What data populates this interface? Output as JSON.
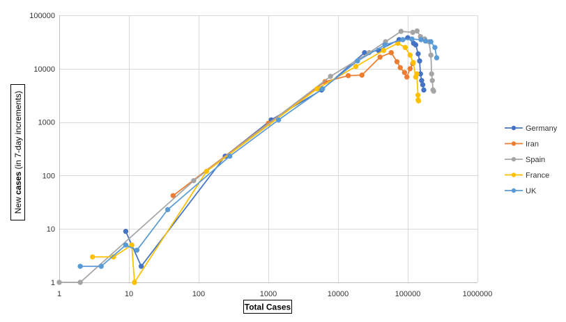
{
  "chart_data": {
    "type": "line",
    "xlabel": "Total Cases",
    "ylabel_parts": [
      "New ",
      "cases",
      " (in 7-day increments)"
    ],
    "xscale": "log",
    "yscale": "log",
    "xlim": [
      1,
      1000000
    ],
    "ylim": [
      1,
      100000
    ],
    "x_ticks": [
      1,
      10,
      100,
      1000,
      10000,
      100000,
      1000000
    ],
    "x_tick_labels": [
      "1",
      "10",
      "100",
      "1000",
      "10000",
      "100000",
      "1000000"
    ],
    "y_ticks": [
      1,
      10,
      100,
      1000,
      10000,
      100000
    ],
    "y_tick_labels": [
      "1",
      "10",
      "100",
      "1000",
      "10000",
      "100000"
    ],
    "grid": true,
    "legend_position": "right",
    "series": [
      {
        "name": "Germany",
        "color": "#4472c4",
        "x": [
          9,
          15,
          240,
          1100,
          5800,
          24000,
          38000,
          75000,
          100000,
          121000,
          130000,
          141000,
          148000,
          152000,
          158000,
          164000,
          170000
        ],
        "y": [
          9,
          2,
          230,
          1100,
          4000,
          20000,
          22000,
          35000,
          38000,
          30000,
          28000,
          19000,
          14000,
          8000,
          6000,
          5000,
          4000
        ]
      },
      {
        "name": "Iran",
        "color": "#ed7d31",
        "x": [
          43,
          1000,
          6500,
          14000,
          22000,
          40000,
          58000,
          70000,
          78000,
          90000,
          97000,
          108000,
          118000
        ],
        "y": [
          42,
          950,
          5700,
          7400,
          7600,
          16500,
          20000,
          13500,
          10500,
          8500,
          7000,
          10000,
          12500
        ]
      },
      {
        "name": "Spain",
        "color": "#a5a5a5",
        "x": [
          1,
          2,
          85,
          7800,
          28000,
          48000,
          80000,
          118000,
          136000,
          152000,
          175000,
          202000,
          215000,
          220000,
          225000,
          230000,
          235000
        ],
        "y": [
          1,
          1,
          80,
          7200,
          20000,
          32000,
          50000,
          48000,
          51000,
          40000,
          36000,
          32000,
          18000,
          8000,
          6000,
          4000,
          3800
        ]
      },
      {
        "name": "France",
        "color": "#ffc000",
        "x": [
          3,
          6,
          11,
          12,
          130,
          5000,
          18000,
          45000,
          72000,
          92000,
          108000,
          120000,
          130000,
          135000,
          140000,
          141000,
          143000
        ],
        "y": [
          3,
          3,
          5,
          1,
          120,
          4200,
          11000,
          22000,
          30000,
          25000,
          18000,
          13000,
          7000,
          8000,
          3200,
          2600,
          2500
        ]
      },
      {
        "name": "UK",
        "color": "#5b9bd5",
        "x": [
          2,
          4,
          9,
          13,
          36,
          280,
          1400,
          6000,
          19000,
          47000,
          85000,
          115000,
          155000,
          180000,
          215000,
          245000,
          260000
        ],
        "y": [
          2,
          2,
          5,
          4,
          23,
          230,
          1100,
          4200,
          14000,
          28000,
          35000,
          36000,
          35000,
          33000,
          32000,
          25000,
          16000
        ]
      }
    ]
  }
}
